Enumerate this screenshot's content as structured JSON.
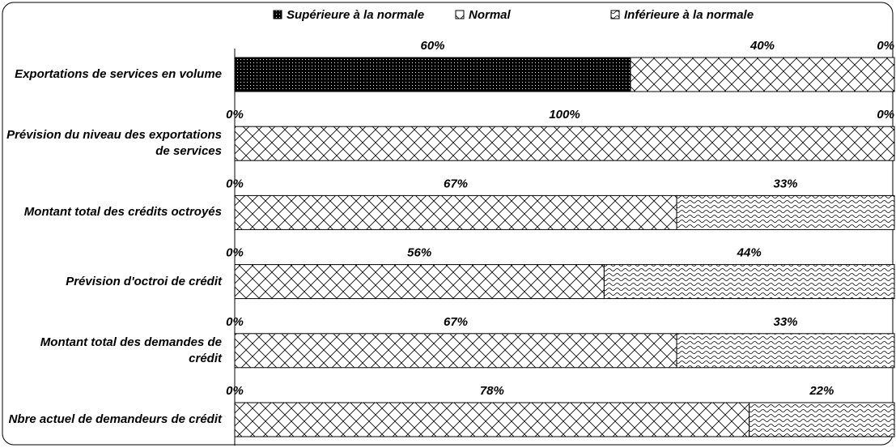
{
  "chart_data": {
    "type": "stacked_barh",
    "categories": [
      "Exportations de services en volume",
      "Prévision du niveau des exportations de services",
      "Montant total des crédits octroyés",
      "Prévision d'octroi de crédit",
      "Montant total des demandes de crédit",
      "Nbre actuel de demandeurs de crédit"
    ],
    "series": [
      {
        "name": "Supérieure à la normale",
        "color": "#000000",
        "values": [
          60,
          0,
          0,
          0,
          0,
          0
        ],
        "value_labels": [
          "60%",
          "0%",
          "0%",
          "0%",
          "0%",
          "0%"
        ]
      },
      {
        "name": "Normal",
        "color": "#000000",
        "values": [
          40,
          100,
          67,
          56,
          67,
          78
        ],
        "value_labels": [
          "40%",
          "100%",
          "67%",
          "56%",
          "67%",
          "78%"
        ]
      },
      {
        "name": "Inférieure à la normale",
        "color": "#000000",
        "values": [
          0,
          0,
          33,
          44,
          33,
          22
        ],
        "value_labels": [
          "0%",
          "0%",
          "33%",
          "44%",
          "33%",
          "22%"
        ]
      }
    ],
    "xlim": [
      0,
      100
    ]
  }
}
